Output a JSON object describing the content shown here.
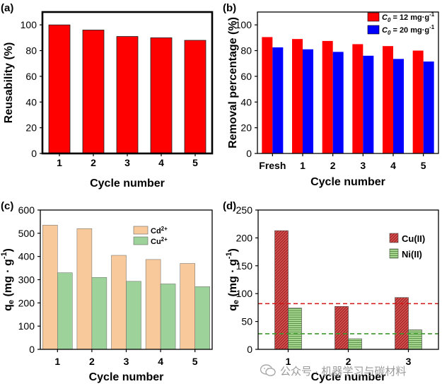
{
  "chart_data": [
    {
      "panel": "(a)",
      "type": "bar",
      "categories": [
        "1",
        "2",
        "3",
        "4",
        "5"
      ],
      "values": [
        100,
        96,
        91,
        90,
        88
      ],
      "xlabel": "Cycle number",
      "ylabel": "Reusability (%)",
      "ylim": [
        0,
        110
      ],
      "yticks": [
        0,
        20,
        40,
        60,
        80,
        100
      ],
      "grid": false,
      "colors": {
        "bar": "#ff0000",
        "edge": "#222222"
      }
    },
    {
      "panel": "(b)",
      "type": "bar",
      "categories": [
        "Fresh",
        "1",
        "2",
        "3",
        "4",
        "5"
      ],
      "series": [
        {
          "name": "= 12 mg·g",
          "values": [
            90.5,
            89,
            87.5,
            85,
            83.5,
            80
          ]
        },
        {
          "name": "= 20 mg·g",
          "values": [
            82.5,
            81,
            79,
            76,
            73.5,
            71.5
          ]
        }
      ],
      "legend_symbol": "C",
      "legend_subscript": "0",
      "legend_superscript": "-1",
      "xlabel": "Cycle number",
      "ylabel": "Removal percentage (%)",
      "ylim": [
        0,
        110
      ],
      "yticks": [
        0,
        20,
        40,
        60,
        80,
        100
      ],
      "legend": "top-right",
      "grid": false,
      "colors": {
        "series": [
          "#ff0000",
          "#0000ff"
        ]
      }
    },
    {
      "panel": "(c)",
      "type": "bar",
      "categories": [
        "1",
        "2",
        "3",
        "4",
        "5"
      ],
      "series": [
        {
          "name": "Cd",
          "ion_charge": "2+",
          "values": [
            535,
            520,
            405,
            387,
            370
          ]
        },
        {
          "name": "Cu",
          "ion_charge": "2+",
          "values": [
            330,
            310,
            293,
            282,
            270
          ]
        }
      ],
      "xlabel": "Cycle number",
      "ylabel": "q",
      "ylabel_subscript": "e",
      "ylabel_units": "(mg · g",
      "ylabel_superscript": "-1",
      "ylim": [
        0,
        600
      ],
      "yticks": [
        0,
        100,
        200,
        300,
        400,
        500,
        600
      ],
      "legend": "upper-middle-right",
      "grid": false,
      "colors": {
        "series": [
          "#f7c99b",
          "#9dd39a"
        ]
      }
    },
    {
      "panel": "(d)",
      "type": "bar",
      "categories": [
        "1",
        "2",
        "3"
      ],
      "series": [
        {
          "name": "Cu(II)",
          "values": [
            213,
            77,
            93
          ]
        },
        {
          "name": "Ni(II)",
          "values": [
            74,
            19,
            35
          ]
        }
      ],
      "reference_lines": [
        {
          "y": 82,
          "color": "#d11414"
        },
        {
          "y": 28,
          "color": "#3a9a2a"
        }
      ],
      "xlabel": "Cycle number",
      "ylabel": "q",
      "ylabel_subscript": "e",
      "ylabel_units": "(mg · g",
      "ylabel_superscript": "-1",
      "ylim": [
        0,
        250
      ],
      "yticks": [
        0,
        50,
        100,
        150,
        200,
        250
      ],
      "legend": "right",
      "grid": false,
      "colors": {
        "series": [
          "#d45050",
          "#a5d48f"
        ]
      }
    }
  ],
  "watermark": {
    "text": "公众号 · 机器学习与碳材料",
    "icon": "wechat-icon"
  }
}
